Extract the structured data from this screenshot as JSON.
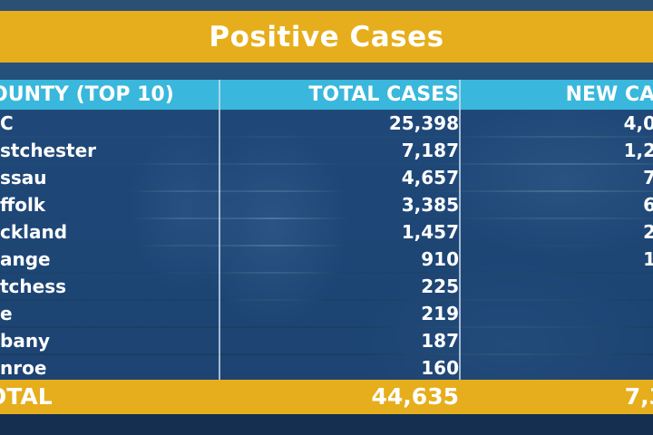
{
  "title": "Positive Cases",
  "columns": {
    "county": "OUNTY (TOP 10)",
    "total_cases": "TOTAL CASES",
    "new_cases": "NEW CAS"
  },
  "rows": [
    {
      "county": "C",
      "total": "25,398",
      "new": "4,0"
    },
    {
      "county": "stchester",
      "total": "7,187",
      "new": "1,2"
    },
    {
      "county": "ssau",
      "total": "4,657",
      "new": "7"
    },
    {
      "county": "ffolk",
      "total": "3,385",
      "new": "6"
    },
    {
      "county": "ckland",
      "total": "1,457",
      "new": "2"
    },
    {
      "county": "ange",
      "total": "910",
      "new": "1"
    },
    {
      "county": "tchess",
      "total": "225",
      "new": ""
    },
    {
      "county": "e",
      "total": "219",
      "new": ""
    },
    {
      "county": "bany",
      "total": "187",
      "new": ""
    },
    {
      "county": "nroe",
      "total": "160",
      "new": ""
    }
  ],
  "total_row": {
    "label": "OTAL",
    "total": "44,635",
    "new": "7,3"
  },
  "colors": {
    "gold": "#e6ae1c",
    "header_blue": "#3ab7dc",
    "row_navy": "#1e4678"
  }
}
